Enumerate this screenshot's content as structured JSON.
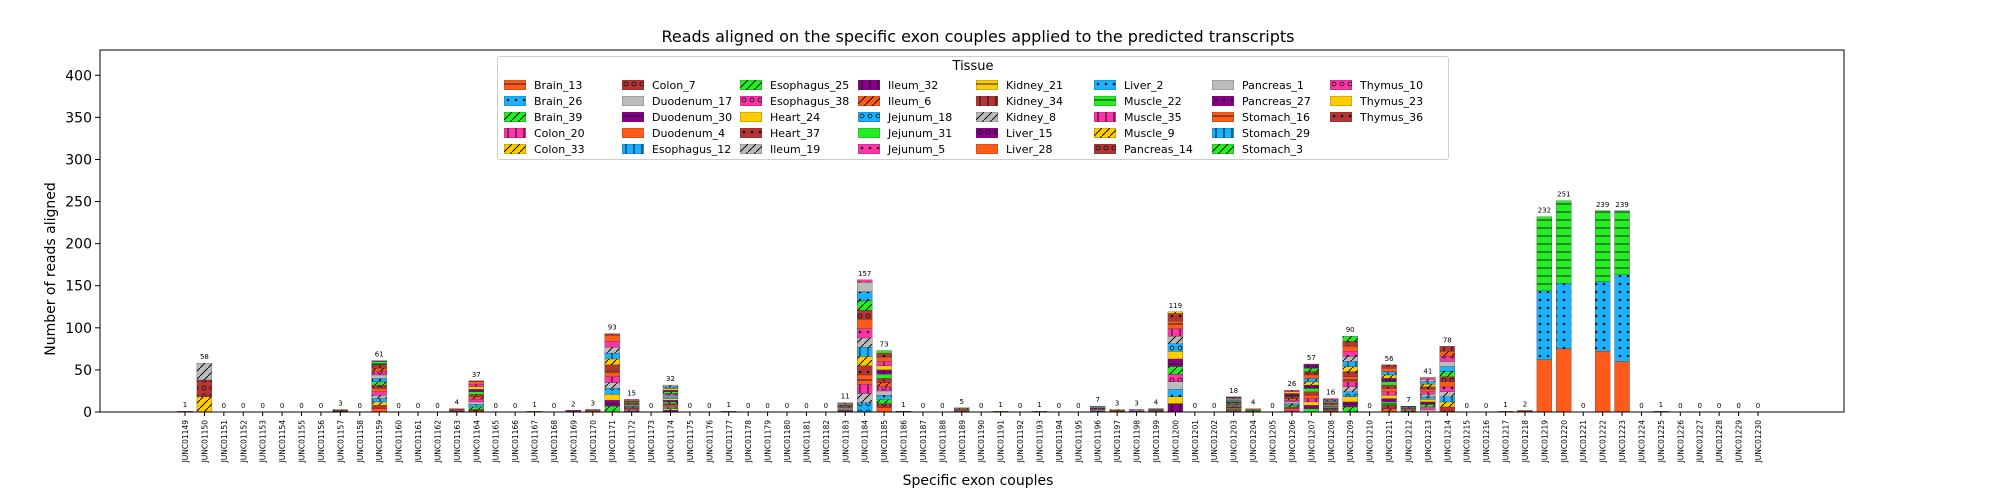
{
  "chart_data": {
    "type": "bar",
    "stacked": true,
    "title": "Reads aligned on the specific exon couples applied to the predicted transcripts",
    "xlabel": "Specific exon couples",
    "ylabel": "Number of reads aligned",
    "ylim": [
      0,
      430
    ],
    "yticks": [
      0,
      50,
      100,
      150,
      200,
      250,
      300,
      350,
      400
    ],
    "grid": false,
    "legend": {
      "title": "Tissue",
      "placement": "top-center",
      "entries": [
        {
          "name": "Brain_13",
          "color": "#ff5a1a",
          "hatch": "dash"
        },
        {
          "name": "Brain_26",
          "color": "#1ab2ff",
          "hatch": "dot"
        },
        {
          "name": "Brain_39",
          "color": "#22ee22",
          "hatch": "slash"
        },
        {
          "name": "Colon_20",
          "color": "#ff33aa",
          "hatch": "bar"
        },
        {
          "name": "Colon_33",
          "color": "#ffcc00",
          "hatch": "slash"
        },
        {
          "name": "Colon_7",
          "color": "#b53535",
          "hatch": "ring"
        },
        {
          "name": "Duodenum_17",
          "color": "#bbbbbb",
          "hatch": "none"
        },
        {
          "name": "Duodenum_30",
          "color": "#880088",
          "hatch": "dash"
        },
        {
          "name": "Duodenum_4",
          "color": "#ff5a1a",
          "hatch": "none"
        },
        {
          "name": "Esophagus_12",
          "color": "#1ab2ff",
          "hatch": "bar"
        },
        {
          "name": "Esophagus_25",
          "color": "#22ee22",
          "hatch": "slash"
        },
        {
          "name": "Esophagus_38",
          "color": "#ff33aa",
          "hatch": "ring"
        },
        {
          "name": "Heart_24",
          "color": "#ffcc00",
          "hatch": "none"
        },
        {
          "name": "Heart_37",
          "color": "#b53535",
          "hatch": "dot"
        },
        {
          "name": "Ileum_19",
          "color": "#bbbbbb",
          "hatch": "slash"
        },
        {
          "name": "Ileum_32",
          "color": "#880088",
          "hatch": "bar"
        },
        {
          "name": "Ileum_6",
          "color": "#ff5a1a",
          "hatch": "slash"
        },
        {
          "name": "Jejunum_18",
          "color": "#1ab2ff",
          "hatch": "ring"
        },
        {
          "name": "Jejunum_31",
          "color": "#22ee22",
          "hatch": "none"
        },
        {
          "name": "Jejunum_5",
          "color": "#ff33aa",
          "hatch": "dot"
        },
        {
          "name": "Kidney_21",
          "color": "#ffcc00",
          "hatch": "dash"
        },
        {
          "name": "Kidney_34",
          "color": "#b53535",
          "hatch": "bar"
        },
        {
          "name": "Kidney_8",
          "color": "#bbbbbb",
          "hatch": "slash"
        },
        {
          "name": "Liver_15",
          "color": "#880088",
          "hatch": "ring"
        },
        {
          "name": "Liver_28",
          "color": "#ff5a1a",
          "hatch": "none"
        },
        {
          "name": "Liver_2",
          "color": "#1ab2ff",
          "hatch": "dot"
        },
        {
          "name": "Muscle_22",
          "color": "#22ee22",
          "hatch": "dash"
        },
        {
          "name": "Muscle_35",
          "color": "#ff33aa",
          "hatch": "bar"
        },
        {
          "name": "Muscle_9",
          "color": "#ffcc00",
          "hatch": "slash"
        },
        {
          "name": "Pancreas_14",
          "color": "#b53535",
          "hatch": "ring"
        },
        {
          "name": "Pancreas_1",
          "color": "#bbbbbb",
          "hatch": "none"
        },
        {
          "name": "Pancreas_27",
          "color": "#880088",
          "hatch": "dot"
        },
        {
          "name": "Stomach_16",
          "color": "#ff5a1a",
          "hatch": "dash"
        },
        {
          "name": "Stomach_29",
          "color": "#1ab2ff",
          "hatch": "bar"
        },
        {
          "name": "Stomach_3",
          "color": "#22ee22",
          "hatch": "slash"
        },
        {
          "name": "Thymus_10",
          "color": "#ff33aa",
          "hatch": "ring"
        },
        {
          "name": "Thymus_23",
          "color": "#ffcc00",
          "hatch": "none"
        },
        {
          "name": "Thymus_36",
          "color": "#b53535",
          "hatch": "dot"
        }
      ]
    },
    "categories": [
      "JUNC01149",
      "JUNC01150",
      "JUNC01151",
      "JUNC01152",
      "JUNC01153",
      "JUNC01154",
      "JUNC01155",
      "JUNC01156",
      "JUNC01157",
      "JUNC01158",
      "JUNC01159",
      "JUNC01160",
      "JUNC01161",
      "JUNC01162",
      "JUNC01163",
      "JUNC01164",
      "JUNC01165",
      "JUNC01166",
      "JUNC01167",
      "JUNC01168",
      "JUNC01169",
      "JUNC01170",
      "JUNC01171",
      "JUNC01172",
      "JUNC01173",
      "JUNC01174",
      "JUNC01175",
      "JUNC01176",
      "JUNC01177",
      "JUNC01178",
      "JUNC01179",
      "JUNC01180",
      "JUNC01181",
      "JUNC01182",
      "JUNC01183",
      "JUNC01184",
      "JUNC01185",
      "JUNC01186",
      "JUNC01187",
      "JUNC01188",
      "JUNC01189",
      "JUNC01190",
      "JUNC01191",
      "JUNC01192",
      "JUNC01193",
      "JUNC01194",
      "JUNC01195",
      "JUNC01196",
      "JUNC01197",
      "JUNC01198",
      "JUNC01199",
      "JUNC01200",
      "JUNC01201",
      "JUNC01202",
      "JUNC01203",
      "JUNC01204",
      "JUNC01205",
      "JUNC01206",
      "JUNC01207",
      "JUNC01208",
      "JUNC01209",
      "JUNC01210",
      "JUNC01211",
      "JUNC01212",
      "JUNC01213",
      "JUNC01214",
      "JUNC01215",
      "JUNC01216",
      "JUNC01217",
      "JUNC01218",
      "JUNC01219",
      "JUNC01220",
      "JUNC01221",
      "JUNC01222",
      "JUNC01223",
      "JUNC01224",
      "JUNC01225",
      "JUNC01226",
      "JUNC01227",
      "JUNC01228",
      "JUNC01229",
      "JUNC01230"
    ],
    "totals": [
      1,
      58,
      0,
      0,
      0,
      0,
      0,
      0,
      3,
      0,
      61,
      0,
      0,
      0,
      4,
      37,
      0,
      0,
      1,
      0,
      2,
      3,
      93,
      15,
      0,
      32,
      0,
      0,
      1,
      0,
      0,
      0,
      0,
      0,
      11,
      157,
      73,
      1,
      0,
      0,
      5,
      0,
      1,
      0,
      1,
      0,
      0,
      7,
      3,
      3,
      4,
      119,
      0,
      0,
      18,
      4,
      0,
      26,
      57,
      16,
      90,
      0,
      56,
      7,
      41,
      78,
      0,
      0,
      1,
      2,
      232,
      251,
      0,
      239,
      239,
      0,
      1,
      0,
      0,
      0,
      0,
      0
    ],
    "dominant_series": [
      {
        "category": "JUNC01219",
        "values": {
          "Liver_28": 62,
          "Liver_2": 82,
          "Muscle_22": 88
        }
      },
      {
        "category": "JUNC01220",
        "values": {
          "Liver_28": 75,
          "Liver_2": 78,
          "Muscle_22": 98
        }
      },
      {
        "category": "JUNC01222",
        "values": {
          "Liver_28": 72,
          "Liver_2": 83,
          "Muscle_22": 84
        }
      },
      {
        "category": "JUNC01223",
        "values": {
          "Liver_28": 60,
          "Liver_2": 103,
          "Muscle_22": 76
        }
      },
      {
        "category": "JUNC01150",
        "values": {
          "Colon_33": 18,
          "Colon_7": 20,
          "Kidney_8": 20
        }
      }
    ]
  }
}
